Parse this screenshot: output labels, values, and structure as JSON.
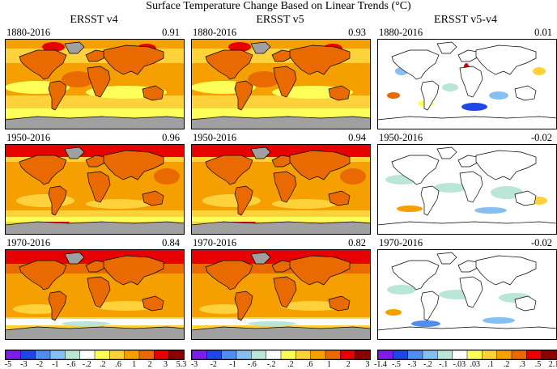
{
  "title": "Surface Temperature Change Based on Linear Trends (°C)",
  "columns": [
    {
      "heading": "ERSST v4",
      "panels": [
        {
          "period": "1880-2016",
          "value": "0.91"
        },
        {
          "period": "1950-2016",
          "value": "0.96"
        },
        {
          "period": "1970-2016",
          "value": "0.84"
        }
      ],
      "colorbar": {
        "ticks": [
          "-5",
          "-3",
          "-2",
          "-1",
          "-.6",
          "-.2",
          ".2",
          ".6",
          "1",
          "2",
          "3",
          "5.3"
        ],
        "colors": [
          "#7d1ee6",
          "#2046e6",
          "#4f8ef0",
          "#86c0f2",
          "#b9e6d6",
          "#ffffff",
          "#ffff5a",
          "#ffd23c",
          "#f5a000",
          "#e86a00",
          "#e60000",
          "#8b0000"
        ]
      }
    },
    {
      "heading": "ERSST v5",
      "panels": [
        {
          "period": "1880-2016",
          "value": "0.93"
        },
        {
          "period": "1950-2016",
          "value": "0.94"
        },
        {
          "period": "1970-2016",
          "value": "0.82"
        }
      ],
      "colorbar": {
        "ticks": [
          "-3",
          "-2",
          "-1",
          "-.6",
          "-.2",
          ".2",
          ".6",
          "1",
          "2",
          "3"
        ],
        "colors": [
          "#7d1ee6",
          "#2046e6",
          "#4f8ef0",
          "#86c0f2",
          "#b9e6d6",
          "#ffffff",
          "#ffff5a",
          "#ffd23c",
          "#f5a000",
          "#e86a00",
          "#e60000",
          "#8b0000"
        ]
      }
    },
    {
      "heading": "ERSST v5-v4",
      "panels": [
        {
          "period": "1880-2016",
          "value": "0.01"
        },
        {
          "period": "1950-2016",
          "value": "-0.02"
        },
        {
          "period": "1970-2016",
          "value": "-0.02"
        }
      ],
      "colorbar": {
        "ticks": [
          "-1.4",
          "-.5",
          "-.3",
          "-.2",
          "-.1",
          "-.03",
          ".03",
          ".1",
          ".2",
          ".3",
          ".5",
          "2.1"
        ],
        "colors": [
          "#7d1ee6",
          "#2046e6",
          "#4f8ef0",
          "#86c0f2",
          "#b9e6d6",
          "#ffffff",
          "#ffff5a",
          "#ffd23c",
          "#f5a000",
          "#e86a00",
          "#e60000",
          "#8b0000"
        ]
      }
    }
  ],
  "chart_data": {
    "type": "heatmap",
    "title": "Surface Temperature Change Based on Linear Trends (°C)",
    "panels": [
      {
        "dataset": "ERSST v4",
        "period": "1880-2016",
        "global_mean_change": 0.91
      },
      {
        "dataset": "ERSST v5",
        "period": "1880-2016",
        "global_mean_change": 0.93
      },
      {
        "dataset": "ERSST v5-v4",
        "period": "1880-2016",
        "global_mean_change": 0.01
      },
      {
        "dataset": "ERSST v4",
        "period": "1950-2016",
        "global_mean_change": 0.96
      },
      {
        "dataset": "ERSST v5",
        "period": "1950-2016",
        "global_mean_change": 0.94
      },
      {
        "dataset": "ERSST v5-v4",
        "period": "1950-2016",
        "global_mean_change": -0.02
      },
      {
        "dataset": "ERSST v4",
        "period": "1970-2016",
        "global_mean_change": 0.84
      },
      {
        "dataset": "ERSST v5",
        "period": "1970-2016",
        "global_mean_change": 0.82
      },
      {
        "dataset": "ERSST v5-v4",
        "period": "1970-2016",
        "global_mean_change": -0.02
      }
    ],
    "missing_data_color": "#a0a0a0"
  }
}
